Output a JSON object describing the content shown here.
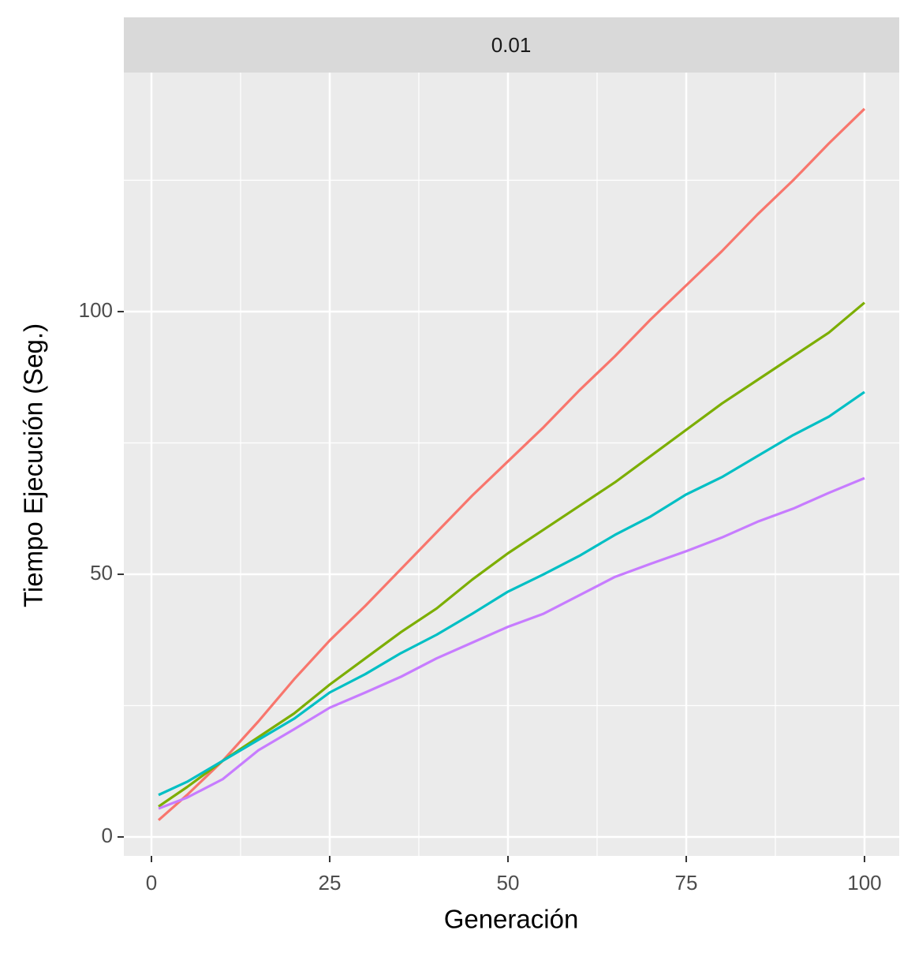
{
  "chart_data": {
    "type": "line",
    "facet_label": "0.01",
    "x_label": "Generación",
    "y_label": "Tiempo Ejecución (Seg.)",
    "x": [
      1,
      5,
      10,
      15,
      20,
      25,
      30,
      35,
      40,
      45,
      50,
      55,
      60,
      65,
      70,
      75,
      80,
      85,
      90,
      95,
      100
    ],
    "series": [
      {
        "color": "#F8766D",
        "values": [
          3.2,
          8,
          14.5,
          22,
          30,
          37.4,
          44,
          51,
          58,
          65,
          71.5,
          78,
          85,
          91.5,
          98.5,
          105,
          111.5,
          118.5,
          125,
          132,
          138.6
        ]
      },
      {
        "color": "#7CAE00",
        "values": [
          5.8,
          9.5,
          14.5,
          19,
          23.5,
          29,
          34,
          39,
          43.5,
          49,
          54,
          58.5,
          63,
          67.5,
          72.5,
          77.5,
          82.5,
          87,
          91.5,
          96,
          101.7
        ]
      },
      {
        "color": "#00BFC4",
        "values": [
          8,
          10.5,
          14.5,
          18.5,
          22.5,
          27.5,
          31,
          35,
          38.5,
          42.5,
          46.7,
          50,
          53.5,
          57.5,
          61,
          65.2,
          68.5,
          72.5,
          76.5,
          80,
          84.7
        ]
      },
      {
        "color": "#C77CFF",
        "values": [
          5.4,
          7.5,
          11,
          16.5,
          20.5,
          24.6,
          27.5,
          30.5,
          34,
          37,
          40,
          42.5,
          46,
          49.5,
          52,
          54.4,
          57,
          60,
          62.5,
          65.5,
          68.3
        ]
      }
    ],
    "xlim": [
      -3.87,
      104.87
    ],
    "xticks": [
      0,
      25,
      50,
      75,
      100
    ],
    "ylim": [
      -3.6,
      145.5
    ],
    "yticks": [
      0,
      50,
      100
    ],
    "grid": true
  }
}
